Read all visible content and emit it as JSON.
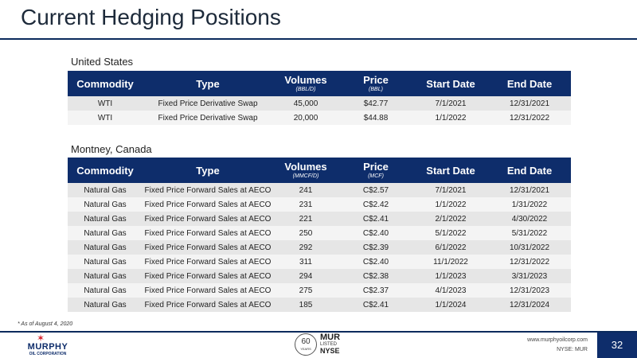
{
  "title": "Current Hedging Positions",
  "colors": {
    "header_bg": "#0e2d6b",
    "rule": "#0b2a5c",
    "brand_red": "#d6202a"
  },
  "sections": [
    {
      "label": "United States",
      "headers": {
        "commodity": "Commodity",
        "type": "Type",
        "volumes": "Volumes",
        "volumes_unit": "(BBL/D)",
        "price": "Price",
        "price_unit": "(BBL)",
        "start": "Start Date",
        "end": "End Date"
      },
      "rows": [
        [
          "WTI",
          "Fixed Price Derivative Swap",
          "45,000",
          "$42.77",
          "7/1/2021",
          "12/31/2021"
        ],
        [
          "WTI",
          "Fixed Price Derivative Swap",
          "20,000",
          "$44.88",
          "1/1/2022",
          "12/31/2022"
        ]
      ]
    },
    {
      "label": "Montney, Canada",
      "headers": {
        "commodity": "Commodity",
        "type": "Type",
        "volumes": "Volumes",
        "volumes_unit": "(MMCF/D)",
        "price": "Price",
        "price_unit": "(MCF)",
        "start": "Start Date",
        "end": "End Date"
      },
      "rows": [
        [
          "Natural Gas",
          "Fixed Price Forward Sales at AECO",
          "241",
          "C$2.57",
          "7/1/2021",
          "12/31/2021"
        ],
        [
          "Natural Gas",
          "Fixed Price Forward Sales at AECO",
          "231",
          "C$2.42",
          "1/1/2022",
          "1/31/2022"
        ],
        [
          "Natural Gas",
          "Fixed Price Forward Sales at AECO",
          "221",
          "C$2.41",
          "2/1/2022",
          "4/30/2022"
        ],
        [
          "Natural Gas",
          "Fixed Price Forward Sales at AECO",
          "250",
          "C$2.40",
          "5/1/2022",
          "5/31/2022"
        ],
        [
          "Natural Gas",
          "Fixed Price Forward Sales at AECO",
          "292",
          "C$2.39",
          "6/1/2022",
          "10/31/2022"
        ],
        [
          "Natural Gas",
          "Fixed Price Forward Sales at AECO",
          "311",
          "C$2.40",
          "11/1/2022",
          "12/31/2022"
        ],
        [
          "Natural Gas",
          "Fixed Price Forward Sales at AECO",
          "294",
          "C$2.38",
          "1/1/2023",
          "3/31/2023"
        ],
        [
          "Natural Gas",
          "Fixed Price Forward Sales at AECO",
          "275",
          "C$2.37",
          "4/1/2023",
          "12/31/2023"
        ],
        [
          "Natural Gas",
          "Fixed Price Forward Sales at AECO",
          "185",
          "C$2.41",
          "1/1/2024",
          "12/31/2024"
        ]
      ]
    }
  ],
  "footnote": "* As of August 4, 2020",
  "footer": {
    "logo_name": "MURPHY",
    "logo_sub": "OIL CORPORATION",
    "badge_years": "60",
    "badge_years_label": "YEARS",
    "badge_ticker": "MUR",
    "badge_listed": "LISTED",
    "badge_exchange": "NYSE",
    "website": "www.murphyoilcorp.com",
    "ticker": "NYSE: MUR",
    "page_number": "32"
  }
}
